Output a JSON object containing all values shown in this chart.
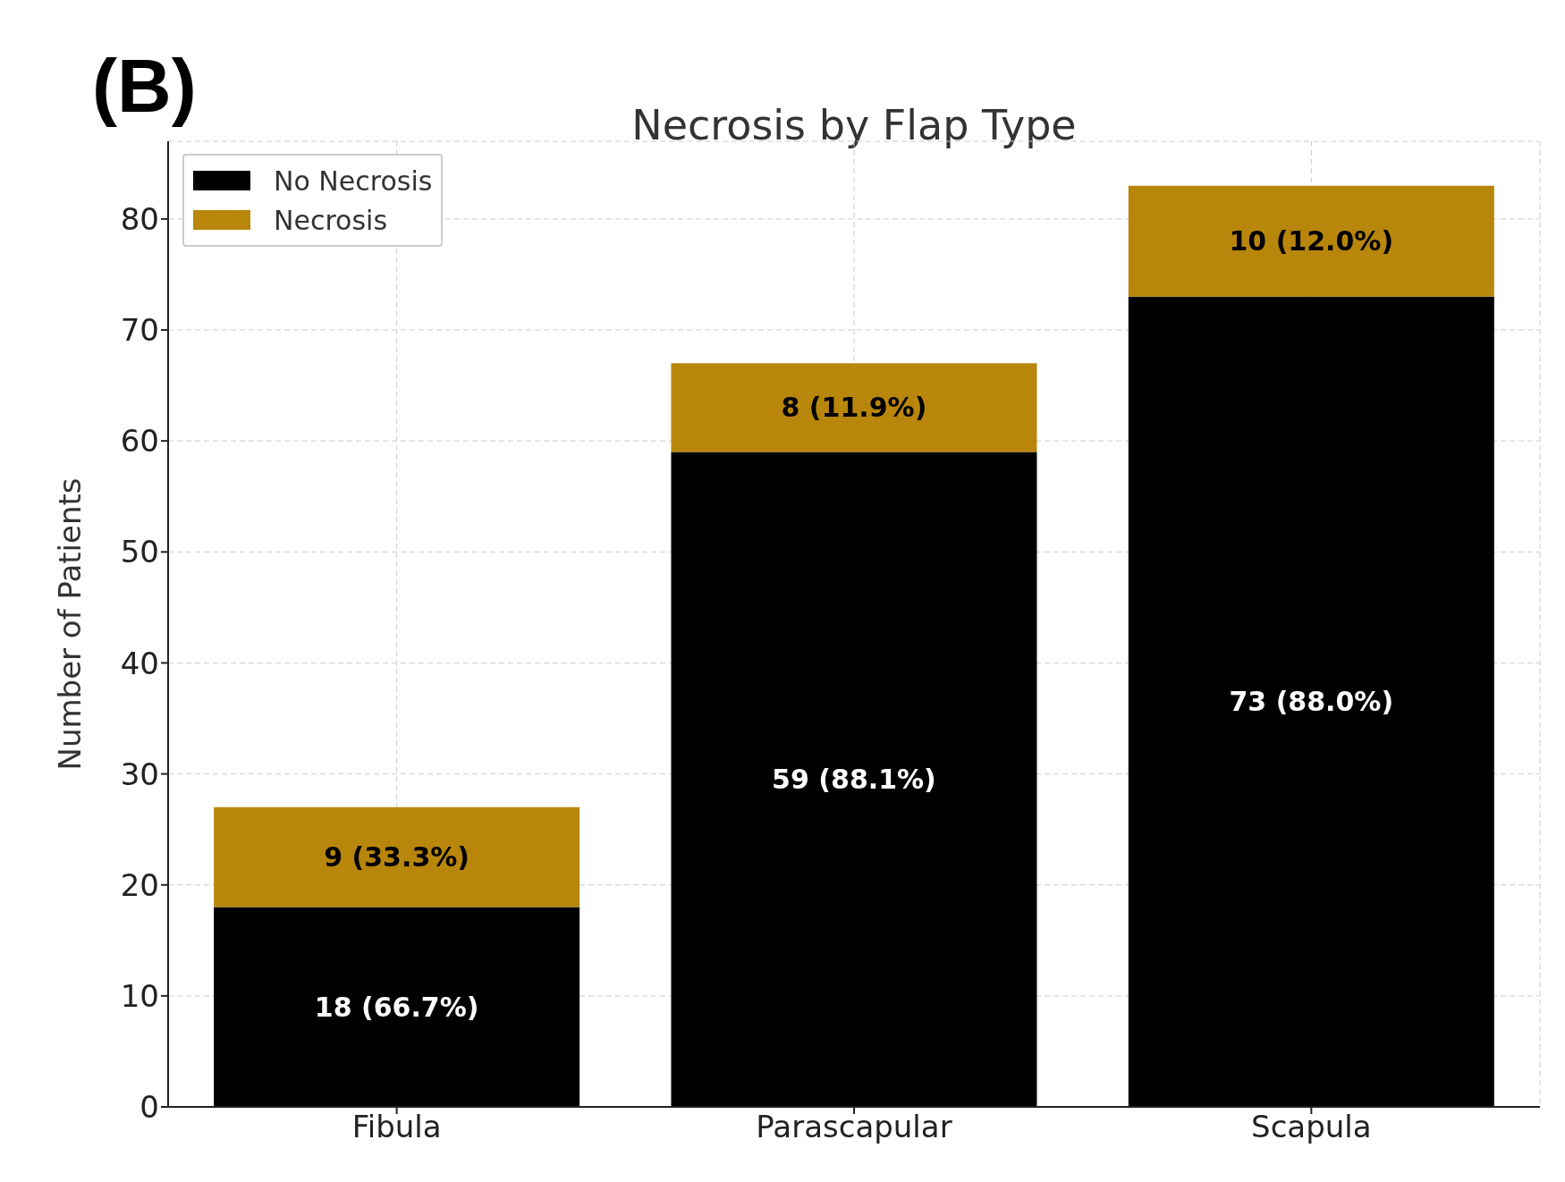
{
  "chart_data": {
    "type": "bar",
    "title": "Necrosis by Flap Type",
    "ylabel": "Number of Patients",
    "annotations": [
      "(B)"
    ],
    "categories": [
      "Fibula",
      "Parascapular",
      "Scapula"
    ],
    "stacked": true,
    "series": [
      {
        "name": "No Necrosis",
        "color": "#000000",
        "values": [
          18,
          59,
          73
        ],
        "value_labels": [
          "18 (66.7%)",
          "59 (88.1%)",
          "73 (88.0%)"
        ]
      },
      {
        "name": "Necrosis",
        "color": "#b8860b",
        "values": [
          9,
          8,
          10
        ],
        "value_labels": [
          "9 (33.3%)",
          "8 (11.9%)",
          "10 (12.0%)"
        ]
      }
    ],
    "ylim": [
      0,
      87
    ],
    "yticks": [
      0,
      10,
      20,
      30,
      40,
      50,
      60,
      70,
      80
    ],
    "grid": true,
    "legend": "top left"
  }
}
